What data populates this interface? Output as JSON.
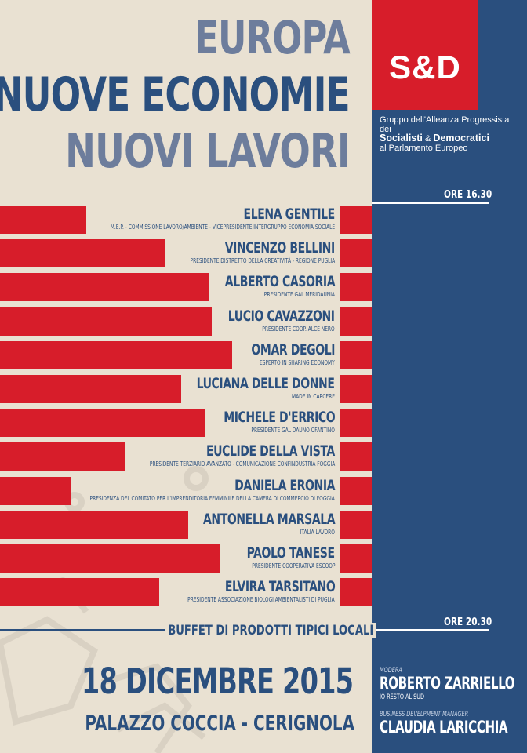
{
  "title": {
    "line1": "EUROPA",
    "line2": "NUOVE ECONOMIE",
    "line3": "NUOVI LAVORI"
  },
  "logo": {
    "text": "S&D",
    "group_line1": "Gruppo dell'Alleanza Progressista dei",
    "group_socialisti": "Socialisti",
    "group_amp": "&",
    "group_democratici": "Democratici",
    "group_line3": "al Parlamento Europeo"
  },
  "times": {
    "start": "ORE 16.30",
    "end": "ORE 20.30"
  },
  "speakers": [
    {
      "name": "ELENA GENTILE",
      "role": "M.E.P. - Commissione Lavoro/Ambiente - Vicepresidente Intergruppo Economia Sociale",
      "bar_fraction": 0.255
    },
    {
      "name": "VINCENZO BELLINI",
      "role": "Presidente Distretto della Creatività - Regione Puglia",
      "bar_fraction": 0.485
    },
    {
      "name": "ALBERTO CASORIA",
      "role": "Presidente GAL Meridaunia",
      "bar_fraction": 0.615
    },
    {
      "name": "LUCIO CAVAZZONI",
      "role": "Presidente Coop. Alce Nero",
      "bar_fraction": 0.625
    },
    {
      "name": "OMAR DEGOLI",
      "role": "Esperto in Sharing Economy",
      "bar_fraction": 0.685
    },
    {
      "name": "LUCIANA DELLE DONNE",
      "role": "Made in Carcere",
      "bar_fraction": 0.535
    },
    {
      "name": "MICHELE D'ERRICO",
      "role": "Presidente GAL Dauno Ofantino",
      "bar_fraction": 0.605
    },
    {
      "name": "EUCLIDE DELLA VISTA",
      "role": "Presidente Terziario Avanzato - Comunicazione Confindustria Foggia",
      "bar_fraction": 0.37
    },
    {
      "name": "DANIELA ERONIA",
      "role": "Presidenza del Comitato per l'Imprenditoria Femminile della Camera di Commercio di Foggia",
      "bar_fraction": 0.21
    },
    {
      "name": "ANTONELLA MARSALA",
      "role": "Italia Lavoro",
      "bar_fraction": 0.555
    },
    {
      "name": "PAOLO TANESE",
      "role": "Presidente Cooperativa Escoop",
      "bar_fraction": 0.65
    },
    {
      "name": "ELVIRA TARSITANO",
      "role": "Presidente Associazione Biologi Ambientalisti di Puglia",
      "bar_fraction": 0.47
    }
  ],
  "buffet": "BUFFET DI PRODOTTI TIPICI LOCALI",
  "date": "18 DICEMBRE 2015",
  "place": "PALAZZO COCCIA - CERIGNOLA",
  "moderator": {
    "label": "MODERA",
    "name": "ROBERTO ZARRIELLO",
    "sub": "IO RESTO AL SUD"
  },
  "manager": {
    "label": "BUSINESS DEVELPMENT MANAGER",
    "name": "CLAUDIA LARICCHIA"
  },
  "colors": {
    "red": "#d71d2a",
    "blue": "#2a4f7e",
    "gray_blue": "#6d7d9c",
    "cream": "#e9e1d2"
  }
}
